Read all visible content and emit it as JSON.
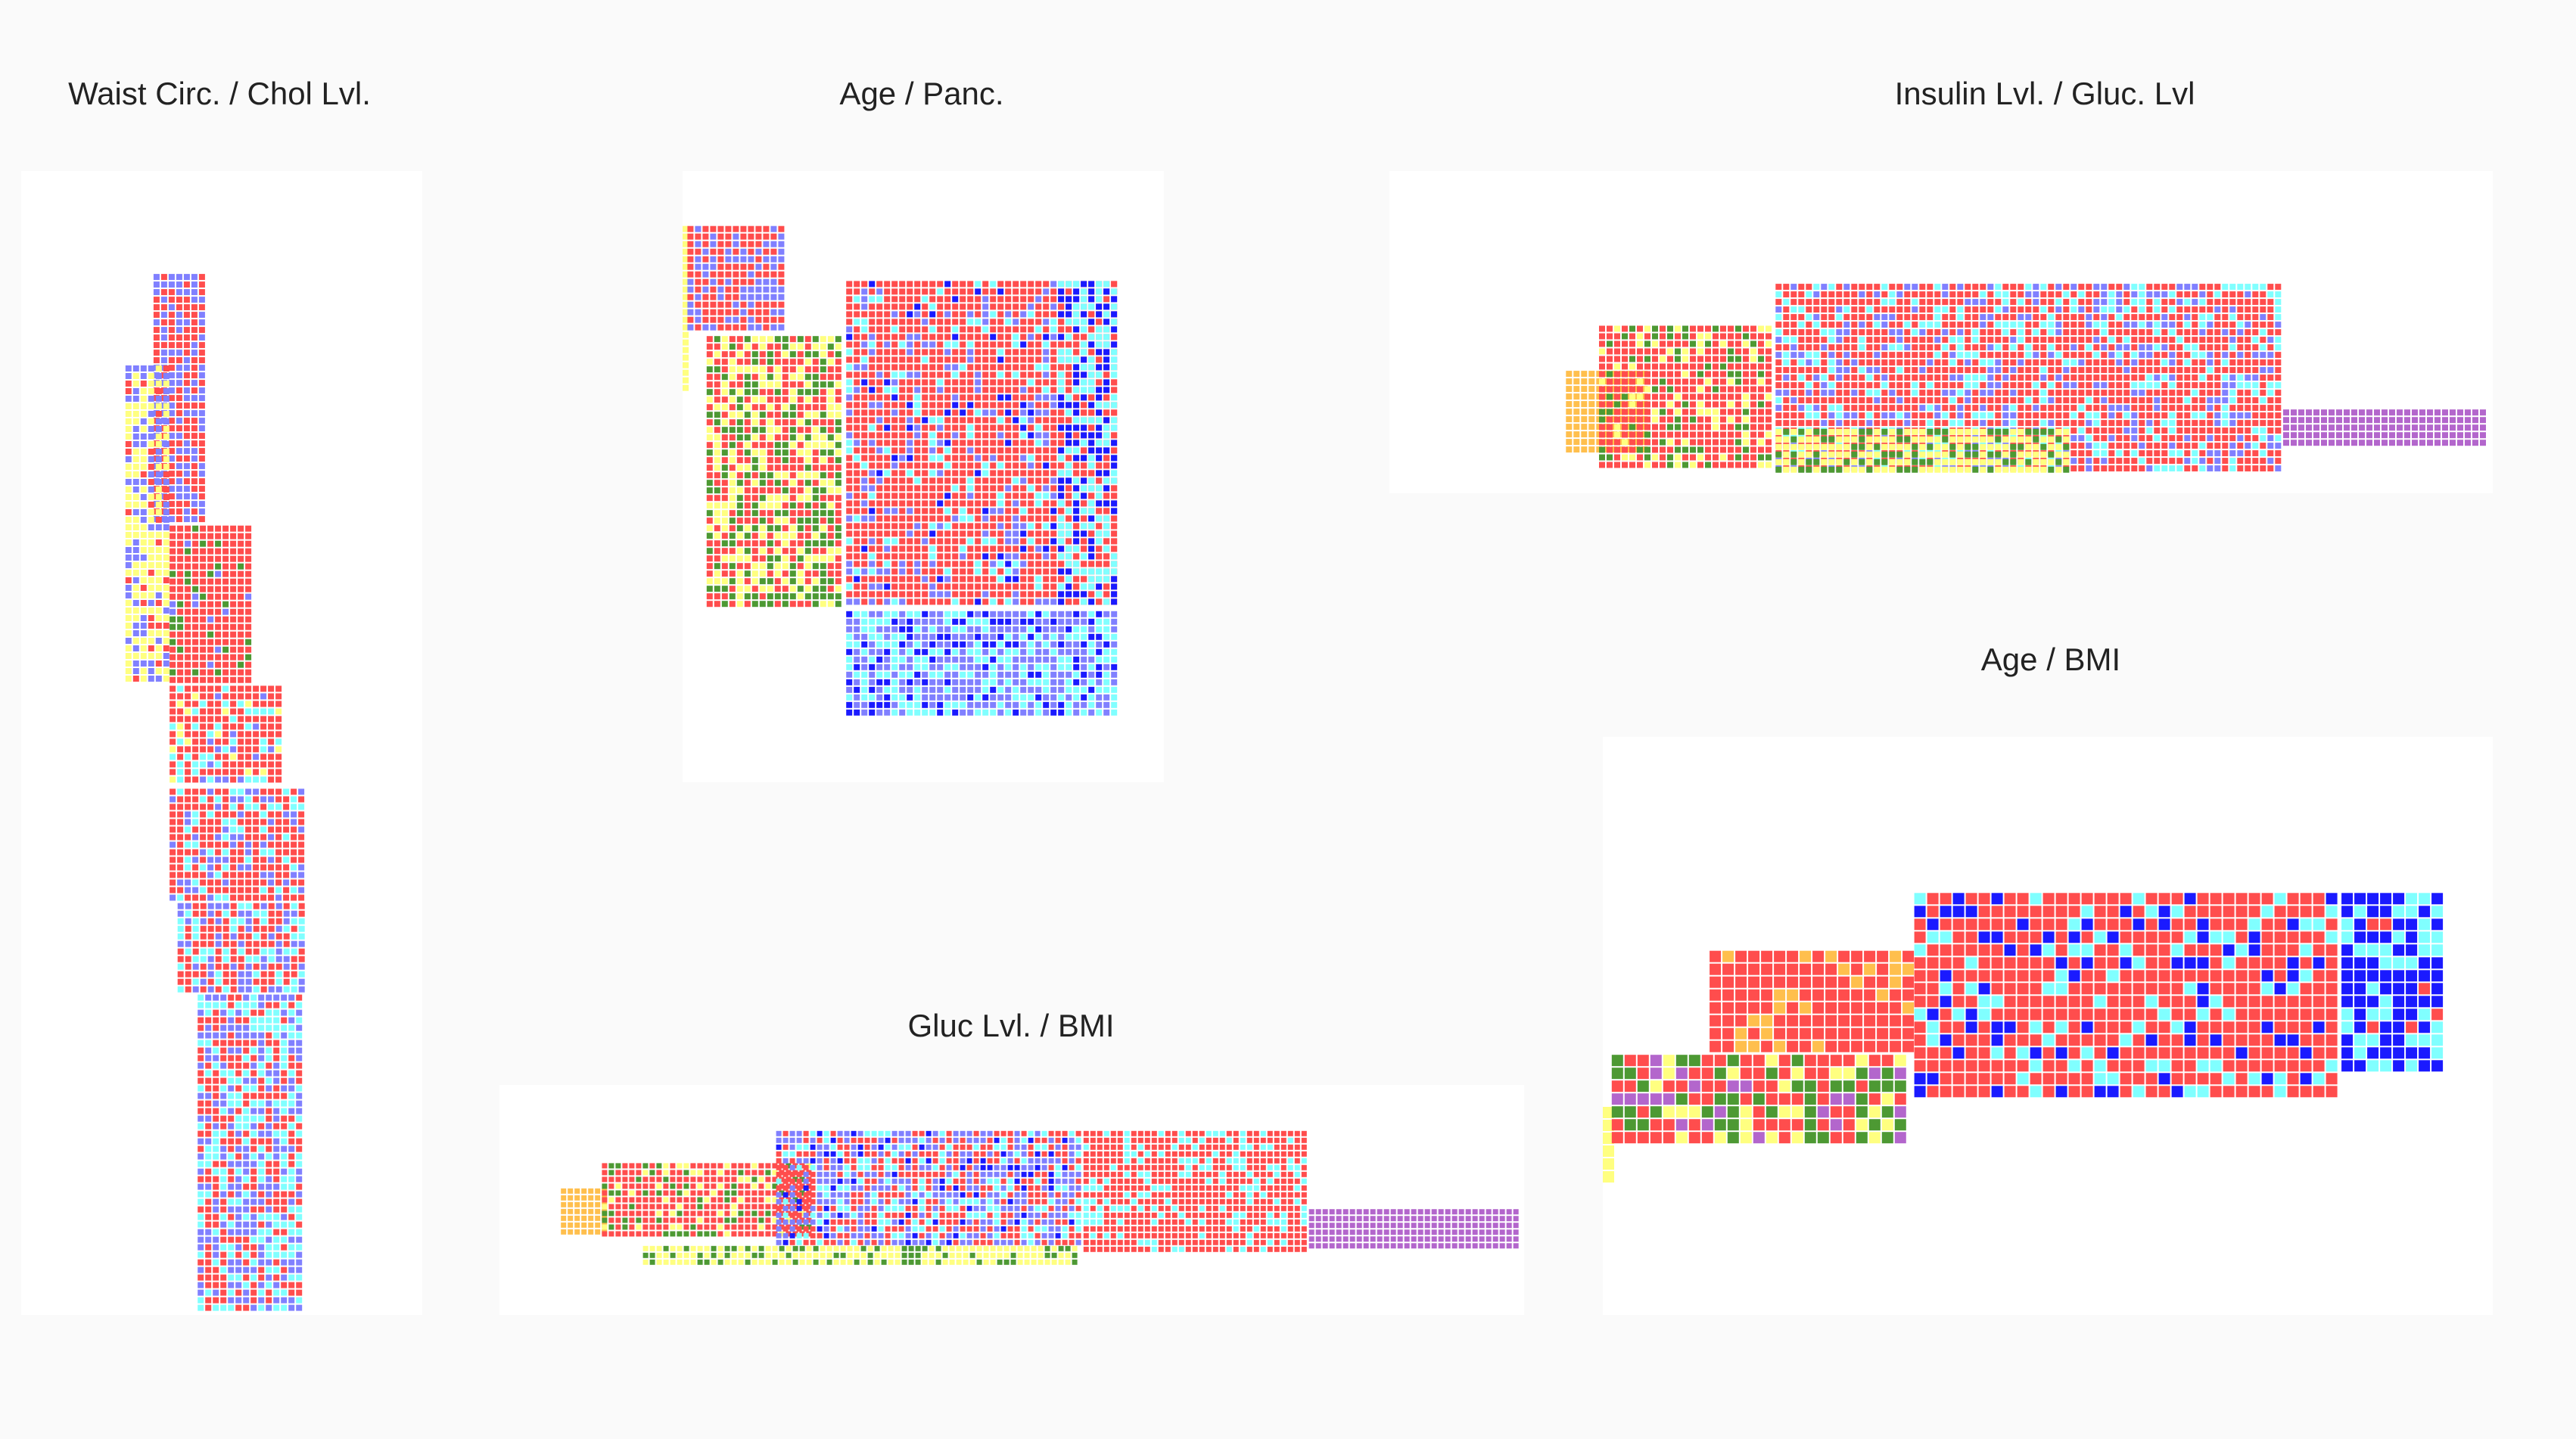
{
  "colors": {
    "yellow": "#ffff80",
    "orange": "#ffbf4d",
    "green": "#4d9933",
    "red": "#ff4d4d",
    "blue": "#1a1aff",
    "violet": "#8080ff",
    "cyan": "#80ffff",
    "purple": "#b366cc"
  },
  "chart_data": [
    {
      "type": "heatmap",
      "title": "Waist Circ. / Chol Lvl.",
      "blocks": [
        {
          "x": [
            0.33,
            0.46
          ],
          "y": [
            0.91,
            0.69
          ],
          "mix": {
            "red": 0.55,
            "violet": 0.45
          }
        },
        {
          "x": [
            0.26,
            0.38
          ],
          "y": [
            0.83,
            0.55
          ],
          "mix": {
            "yellow": 0.55,
            "violet": 0.3,
            "red": 0.15
          }
        },
        {
          "x": [
            0.37,
            0.58
          ],
          "y": [
            0.69,
            0.55
          ],
          "mix": {
            "red": 0.85,
            "green": 0.1,
            "violet": 0.05
          }
        },
        {
          "x": [
            0.37,
            0.65
          ],
          "y": [
            0.55,
            0.46
          ],
          "mix": {
            "red": 0.6,
            "cyan": 0.2,
            "yellow": 0.1,
            "violet": 0.1
          }
        },
        {
          "x": [
            0.37,
            0.71
          ],
          "y": [
            0.46,
            0.36
          ],
          "mix": {
            "red": 0.6,
            "cyan": 0.2,
            "violet": 0.2
          }
        },
        {
          "x": [
            0.39,
            0.71
          ],
          "y": [
            0.36,
            0.28
          ],
          "mix": {
            "red": 0.45,
            "violet": 0.3,
            "cyan": 0.25
          }
        },
        {
          "x": [
            0.44,
            0.71
          ],
          "y": [
            0.28,
            0.0
          ],
          "mix": {
            "red": 0.35,
            "violet": 0.35,
            "cyan": 0.3
          }
        }
      ]
    },
    {
      "type": "heatmap",
      "title": "Age / Panc.",
      "blocks": [
        {
          "x": [
            0.0,
            0.02
          ],
          "y": [
            0.91,
            0.64
          ],
          "mix": {
            "yellow": 1.0
          }
        },
        {
          "x": [
            0.01,
            0.22
          ],
          "y": [
            0.91,
            0.73
          ],
          "mix": {
            "red": 0.6,
            "violet": 0.4
          }
        },
        {
          "x": [
            0.05,
            0.34
          ],
          "y": [
            0.73,
            0.28
          ],
          "mix": {
            "red": 0.45,
            "green": 0.3,
            "yellow": 0.25
          }
        },
        {
          "x": [
            0.34,
            0.91
          ],
          "y": [
            0.82,
            0.28
          ],
          "mix": {
            "red": 0.7,
            "violet": 0.15,
            "cyan": 0.1,
            "blue": 0.05
          }
        },
        {
          "x": [
            0.78,
            0.91
          ],
          "y": [
            0.82,
            0.28
          ],
          "mix": {
            "cyan": 0.4,
            "blue": 0.3,
            "red": 0.3
          }
        },
        {
          "x": [
            0.34,
            0.91
          ],
          "y": [
            0.28,
            0.1
          ],
          "mix": {
            "violet": 0.45,
            "cyan": 0.35,
            "blue": 0.2
          }
        }
      ]
    },
    {
      "type": "heatmap",
      "title": "Insulin Lvl. / Gluc. Lvl",
      "blocks": [
        {
          "x": [
            0.16,
            0.24
          ],
          "y": [
            0.38,
            0.12
          ],
          "mix": {
            "orange": 1.0
          }
        },
        {
          "x": [
            0.19,
            0.35
          ],
          "y": [
            0.52,
            0.06
          ],
          "mix": {
            "red": 0.65,
            "yellow": 0.2,
            "green": 0.15
          }
        },
        {
          "x": [
            0.35,
            0.81
          ],
          "y": [
            0.65,
            0.06
          ],
          "mix": {
            "red": 0.6,
            "violet": 0.2,
            "cyan": 0.2
          }
        },
        {
          "x": [
            0.35,
            0.62
          ],
          "y": [
            0.2,
            0.06
          ],
          "mix": {
            "yellow": 0.7,
            "green": 0.3
          }
        },
        {
          "x": [
            0.81,
            1.0
          ],
          "y": [
            0.26,
            0.13
          ],
          "mix": {
            "purple": 1.0
          }
        }
      ]
    },
    {
      "type": "heatmap",
      "title": "Age / BMI",
      "blocks": [
        {
          "x": [
            0.0,
            0.02
          ],
          "y": [
            0.36,
            0.22
          ],
          "mix": {
            "yellow": 1.0
          }
        },
        {
          "x": [
            0.01,
            0.35
          ],
          "y": [
            0.45,
            0.28
          ],
          "mix": {
            "red": 0.4,
            "green": 0.25,
            "yellow": 0.2,
            "purple": 0.15
          }
        },
        {
          "x": [
            0.12,
            0.35
          ],
          "y": [
            0.63,
            0.45
          ],
          "mix": {
            "red": 0.85,
            "orange": 0.15
          }
        },
        {
          "x": [
            0.35,
            0.83
          ],
          "y": [
            0.73,
            0.37
          ],
          "mix": {
            "red": 0.7,
            "blue": 0.15,
            "cyan": 0.15
          }
        },
        {
          "x": [
            0.83,
            0.95
          ],
          "y": [
            0.73,
            0.41
          ],
          "mix": {
            "blue": 0.55,
            "cyan": 0.35,
            "red": 0.1
          }
        }
      ]
    },
    {
      "type": "heatmap",
      "title": "Gluc Lvl. / BMI",
      "blocks": [
        {
          "x": [
            0.06,
            0.11
          ],
          "y": [
            0.55,
            0.33
          ],
          "mix": {
            "orange": 1.0
          }
        },
        {
          "x": [
            0.1,
            0.31
          ],
          "y": [
            0.66,
            0.33
          ],
          "mix": {
            "red": 0.7,
            "green": 0.15,
            "yellow": 0.15
          }
        },
        {
          "x": [
            0.27,
            0.57
          ],
          "y": [
            0.8,
            0.3
          ],
          "mix": {
            "violet": 0.35,
            "red": 0.35,
            "cyan": 0.2,
            "blue": 0.1
          }
        },
        {
          "x": [
            0.14,
            0.57
          ],
          "y": [
            0.3,
            0.2
          ],
          "mix": {
            "yellow": 0.6,
            "green": 0.4
          }
        },
        {
          "x": [
            0.57,
            0.79
          ],
          "y": [
            0.8,
            0.27
          ],
          "mix": {
            "red": 0.75,
            "cyan": 0.25
          }
        },
        {
          "x": [
            0.79,
            1.0
          ],
          "y": [
            0.46,
            0.27
          ],
          "mix": {
            "purple": 1.0
          }
        }
      ]
    }
  ]
}
